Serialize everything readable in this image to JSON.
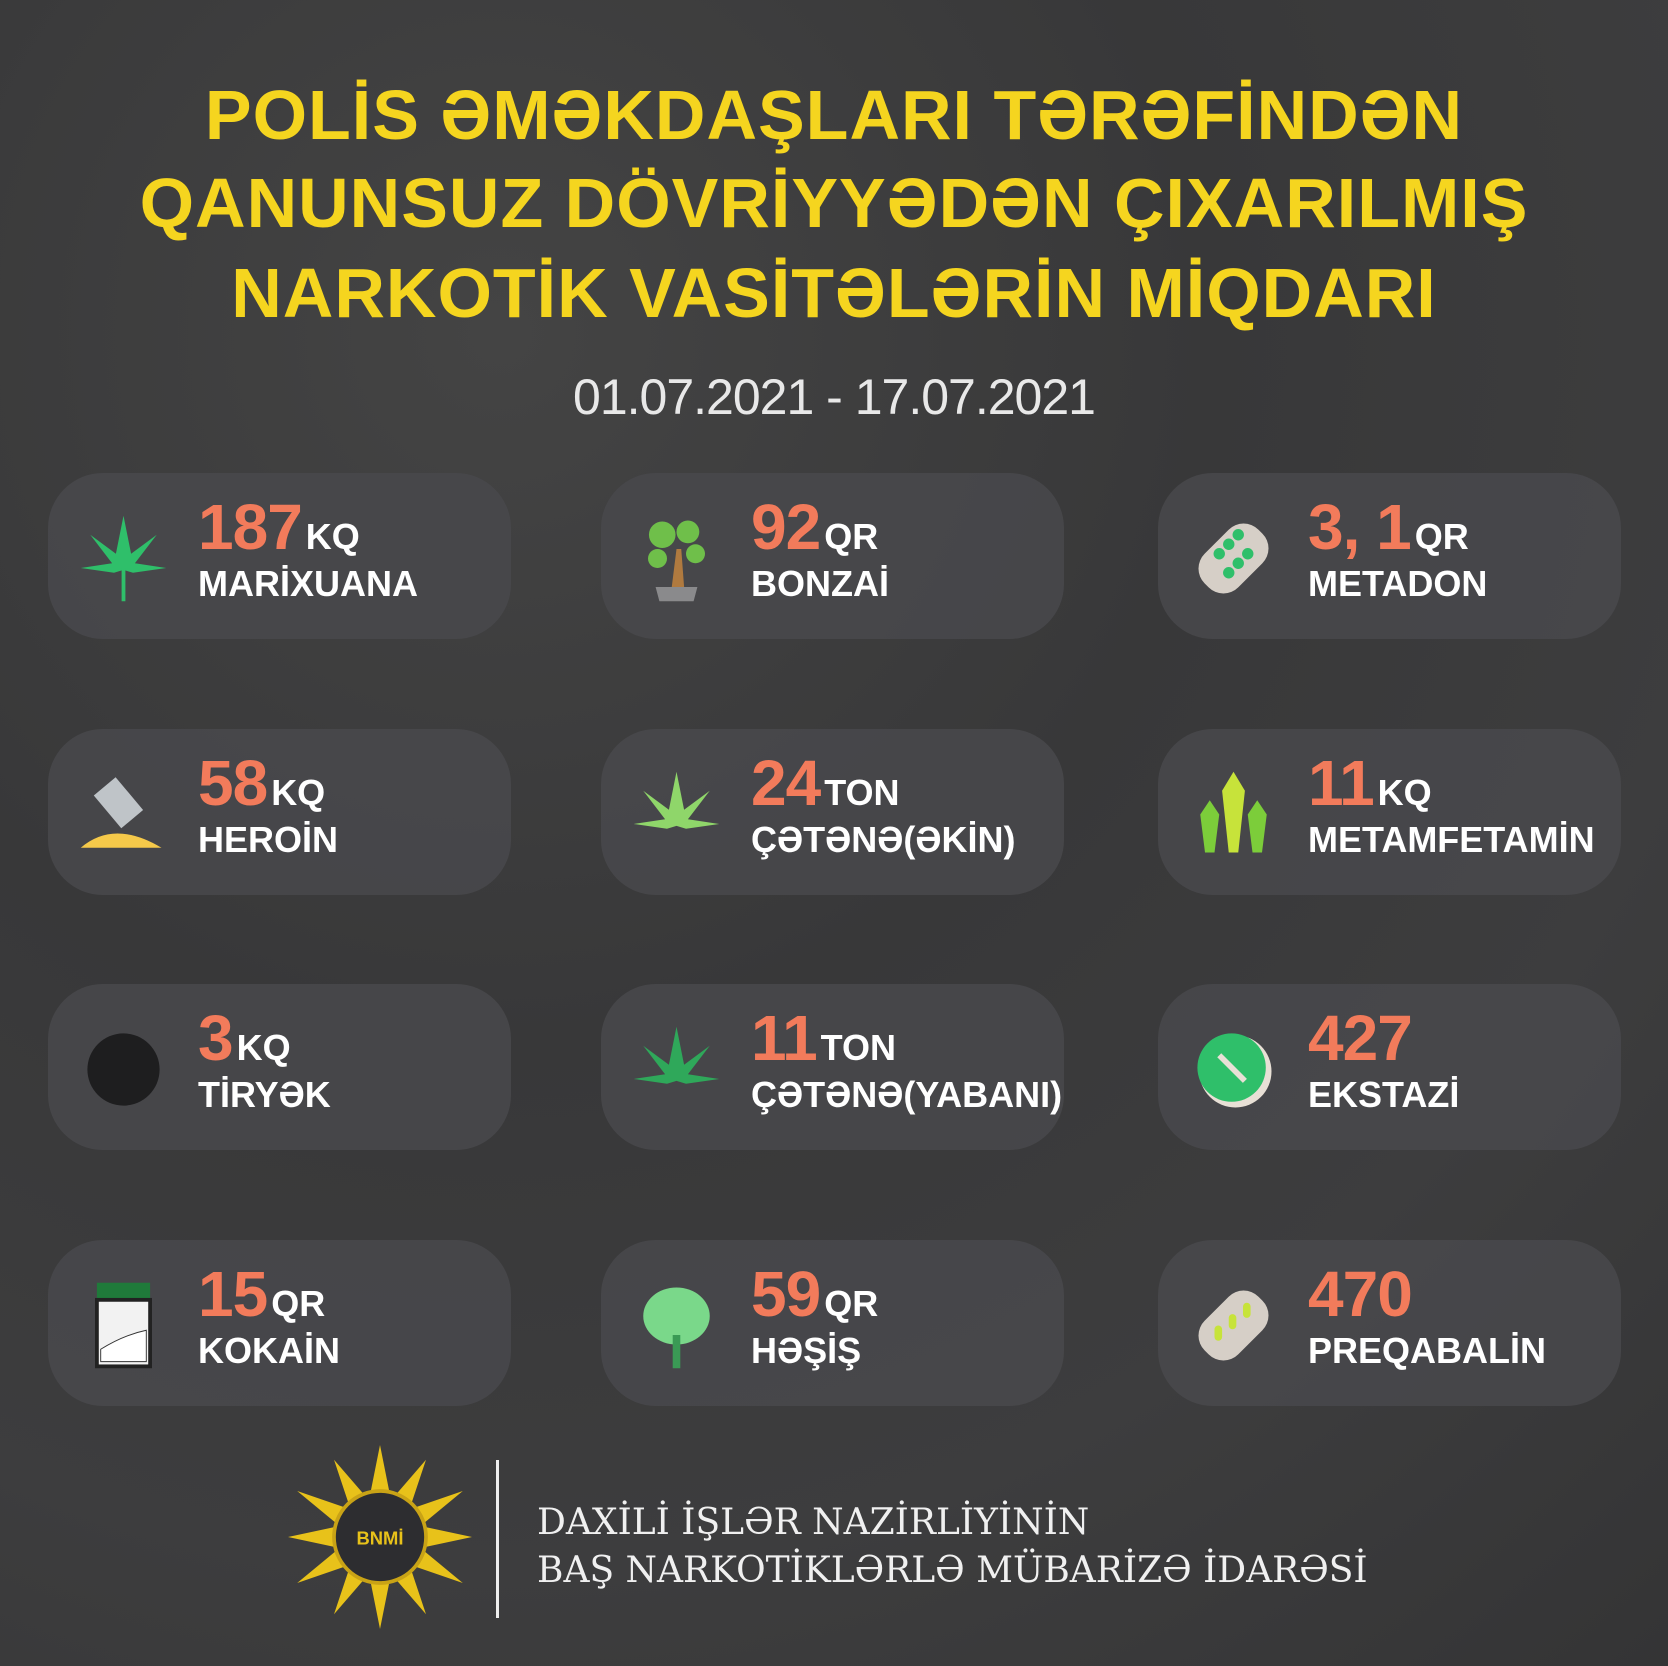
{
  "title_lines": [
    "POLİS ƏMƏKDAŞLARI TƏRƏFİNDƏN",
    "QANUNSUZ DÖVRİYYƏDƏN ÇIXARILMIŞ",
    "NARKOTİK VASİTƏLƏRİN MİQDARI"
  ],
  "date_range": "01.07.2021  -  17.07.2021",
  "colors": {
    "title": "#f5d51f",
    "number": "#f27b5b",
    "background": "#3b3b3c",
    "card": "#48484b"
  },
  "items": [
    {
      "value": "187",
      "unit": "KQ",
      "label": "MARİXUANA",
      "icon": "cannabis-leaf-icon"
    },
    {
      "value": "92",
      "unit": "QR",
      "label": "BONZAİ",
      "icon": "bonsai-tree-icon"
    },
    {
      "value": "3, 1",
      "unit": "QR",
      "label": "METADON",
      "icon": "pill-blister-icon"
    },
    {
      "value": "58",
      "unit": "KQ",
      "label": "HEROİN",
      "icon": "razor-powder-icon"
    },
    {
      "value": "24",
      "unit": "TON",
      "label": "ÇƏTƏNƏ(ƏKİN)",
      "icon": "hemp-leaf-icon"
    },
    {
      "value": "11",
      "unit": "KQ",
      "label": "METAMFETAMİN",
      "icon": "crystals-icon"
    },
    {
      "value": "3",
      "unit": "KQ",
      "label": "TİRYƏK",
      "icon": "opium-ball-icon"
    },
    {
      "value": "11",
      "unit": "TON",
      "label": "ÇƏTƏNƏ(YABANI)",
      "icon": "wild-hemp-icon"
    },
    {
      "value": "427",
      "unit": "",
      "label": "EKSTAZİ",
      "icon": "ecstasy-pill-icon"
    },
    {
      "value": "15",
      "unit": "QR",
      "label": "KOKAİN",
      "icon": "powder-jar-icon"
    },
    {
      "value": "59",
      "unit": "QR",
      "label": "HƏŞİŞ",
      "icon": "poppy-icon"
    },
    {
      "value": "470",
      "unit": "",
      "label": "PREQABALİN",
      "icon": "capsule-blister-icon"
    }
  ],
  "footer": {
    "logo_text": "BNMİ",
    "org_line1": "DAXİLİ İŞLƏR NAZİRLİYİNİN",
    "org_line2": "BAŞ NARKOTİKLƏRLƏ MÜBARİZƏ İDARƏSİ"
  }
}
